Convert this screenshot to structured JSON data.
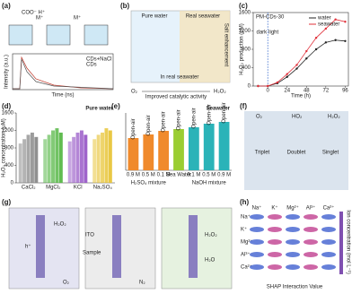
{
  "figure": {
    "a": {
      "label": "(a)",
      "ions": "COO⁻ H⁺",
      "cation": "M⁺",
      "legend": [
        "CDs+NaCl",
        "CDs"
      ],
      "x_label": "Time (ns)",
      "y_label": "Intensity (a.u.)"
    },
    "b": {
      "label": "(b)",
      "left": "Pure water",
      "right": "Real seawater",
      "side": "Salt enhancement",
      "bottom": "In real seawater",
      "reactant": "O₂",
      "arrow": "Improved catalytic activity",
      "product": "H₂O₂"
    },
    "f": {
      "label": "(f)",
      "species": [
        "O₂",
        "HO₂",
        "H₂O₂"
      ],
      "states": [
        "Triplet",
        "Doublet",
        "Singlet"
      ]
    },
    "g": {
      "label": "(g)",
      "gases": [
        "O₂",
        "N₂"
      ],
      "ito": "ITO",
      "sample": "Sample",
      "product": "H₂O₂",
      "hole": "h⁺",
      "water": "H₂O"
    },
    "h": {
      "label": "(h)",
      "ions": [
        "Na⁺",
        "K⁺",
        "Mg²⁺",
        "Al³⁺",
        "Ca²⁺"
      ],
      "x_label": "SHAP Interaction Value",
      "colorbar": "Ion concentration (mol L⁻¹)"
    }
  },
  "chart_data": [
    {
      "type": "line",
      "label": "(c)",
      "title": "PM-CDs-30",
      "annotations": [
        "dark",
        "light"
      ],
      "x_label": "Time (h)",
      "y_label": "H₂O₂ production (μM)",
      "x": [
        -12,
        0,
        12,
        24,
        36,
        48,
        60,
        72,
        84,
        96
      ],
      "series": [
        {
          "name": "water",
          "color": "#222222",
          "values": [
            0,
            0,
            60,
            200,
            380,
            600,
            800,
            950,
            1000,
            980
          ]
        },
        {
          "name": "seawater",
          "color": "#e0303a",
          "values": [
            0,
            0,
            80,
            260,
            460,
            760,
            1050,
            1250,
            1450,
            1400
          ]
        }
      ],
      "xlim": [
        -18,
        100
      ],
      "xticks": [
        0,
        24,
        48,
        72,
        96
      ],
      "ylim": [
        0,
        1600
      ],
      "yticks": [
        0,
        400,
        800,
        1200,
        1600
      ]
    },
    {
      "type": "bar",
      "label": "(d)",
      "title": "Pure water",
      "y_label": "H₂O₂ concentration (μM)",
      "categories": [
        "CaCl₂",
        "MgCl₂",
        "KCl",
        "Na₂SO₄"
      ],
      "colors": [
        "#8a8a8a",
        "#58b848",
        "#9a5cc8",
        "#e8c53a"
      ],
      "series": [
        {
          "values": [
            900,
            1000,
            950,
            1000
          ]
        },
        {
          "values": [
            1000,
            1100,
            1050,
            1100
          ]
        },
        {
          "values": [
            1100,
            1200,
            1150,
            1150
          ]
        },
        {
          "values": [
            1150,
            1250,
            1200,
            1250
          ]
        },
        {
          "values": [
            1050,
            1150,
            1100,
            1200
          ]
        }
      ],
      "ylim": [
        0,
        1600
      ],
      "yticks": [
        0,
        400,
        800,
        1200,
        1600
      ]
    },
    {
      "type": "bar",
      "label": "(e)",
      "title": "Seawater",
      "annotation": "Open-air",
      "categories": [
        "0.9 M",
        "0.5 M",
        "0.1 M",
        "Sea Water",
        "0.1 M",
        "0.5 M",
        "0.9 M"
      ],
      "values": [
        900,
        1000,
        1100,
        1150,
        1200,
        1300,
        1350
      ],
      "colors": [
        "#f08a2c",
        "#f08a2c",
        "#f08a2c",
        "#9acd32",
        "#2bb3b8",
        "#2bb3b8",
        "#2bb3b8"
      ],
      "groups": [
        "H₂SO₄ mixture",
        "NaOH mixture"
      ],
      "ylim": [
        0,
        1600
      ]
    }
  ]
}
